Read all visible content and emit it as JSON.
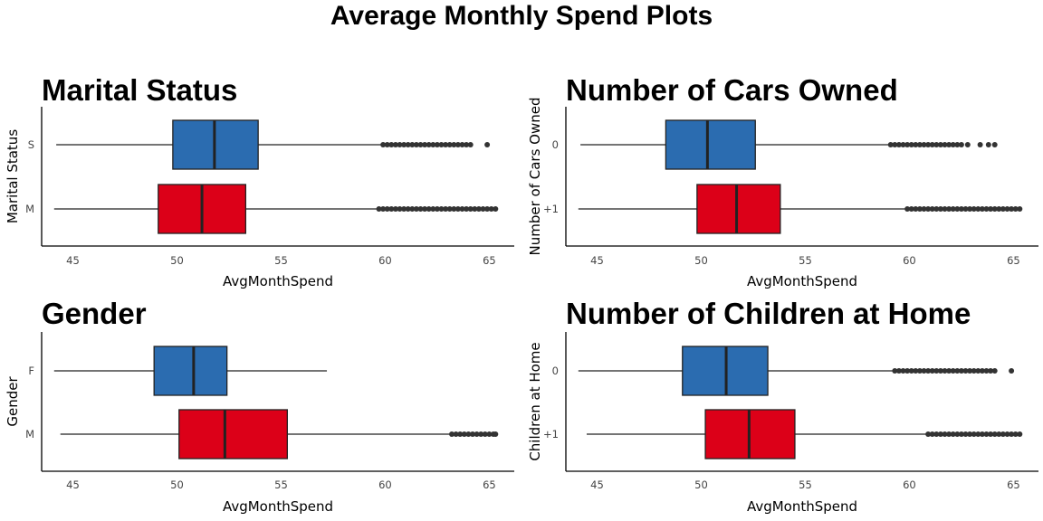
{
  "title": "Average Monthly Spend Plots",
  "colors": {
    "first": "#2B6CB0",
    "second": "#DC0018"
  },
  "chart_data": [
    {
      "type": "boxplot",
      "title": "Marital Status",
      "xlabel": "AvgMonthSpend",
      "ylabel": "Marital Status",
      "xlim": [
        43.5,
        66.2
      ],
      "xticks": [
        45,
        50,
        55,
        60,
        65
      ],
      "categories": [
        {
          "label": "S",
          "min": 44.2,
          "q1": 49.8,
          "median": 51.8,
          "q3": 53.9,
          "max": 59.8,
          "outliers": [
            59.9,
            60.1,
            60.3,
            60.5,
            60.7,
            60.9,
            61.1,
            61.3,
            61.5,
            61.7,
            61.9,
            62.1,
            62.3,
            62.5,
            62.7,
            62.9,
            63.1,
            63.3,
            63.5,
            63.7,
            63.9,
            64.1,
            64.9
          ]
        },
        {
          "label": "M",
          "min": 44.1,
          "q1": 49.1,
          "median": 51.2,
          "q3": 53.3,
          "max": 59.6,
          "outliers": [
            59.7,
            59.9,
            60.1,
            60.3,
            60.5,
            60.7,
            60.9,
            61.1,
            61.3,
            61.5,
            61.7,
            61.9,
            62.1,
            62.3,
            62.5,
            62.7,
            62.9,
            63.1,
            63.3,
            63.5,
            63.7,
            63.9,
            64.1,
            64.3,
            64.5,
            64.7,
            64.9,
            65.1,
            65.3
          ]
        }
      ]
    },
    {
      "type": "boxplot",
      "title": "Number of Cars Owned",
      "xlabel": "AvgMonthSpend",
      "ylabel": "Number of Cars Owned",
      "xlim": [
        43.5,
        66.2
      ],
      "xticks": [
        45,
        50,
        55,
        60,
        65
      ],
      "categories": [
        {
          "label": "0",
          "min": 44.2,
          "q1": 48.3,
          "median": 50.3,
          "q3": 52.6,
          "max": 59.0,
          "outliers": [
            59.1,
            59.3,
            59.5,
            59.7,
            59.9,
            60.1,
            60.3,
            60.5,
            60.7,
            60.9,
            61.1,
            61.3,
            61.5,
            61.7,
            61.9,
            62.1,
            62.3,
            62.5,
            62.8,
            63.4,
            63.8,
            64.1
          ]
        },
        {
          "label": "+1",
          "min": 44.1,
          "q1": 49.8,
          "median": 51.7,
          "q3": 53.8,
          "max": 59.8,
          "outliers": [
            59.9,
            60.1,
            60.3,
            60.5,
            60.7,
            60.9,
            61.1,
            61.3,
            61.5,
            61.7,
            61.9,
            62.1,
            62.3,
            62.5,
            62.7,
            62.9,
            63.1,
            63.3,
            63.5,
            63.7,
            63.9,
            64.1,
            64.3,
            64.5,
            64.7,
            64.9,
            65.1,
            65.3
          ]
        }
      ]
    },
    {
      "type": "boxplot",
      "title": "Gender",
      "xlabel": "AvgMonthSpend",
      "ylabel": "Gender",
      "xlim": [
        43.5,
        66.2
      ],
      "xticks": [
        45,
        50,
        55,
        60,
        65
      ],
      "categories": [
        {
          "label": "F",
          "min": 44.1,
          "q1": 48.9,
          "median": 50.8,
          "q3": 52.4,
          "max": 57.2,
          "outliers": []
        },
        {
          "label": "M",
          "min": 44.4,
          "q1": 50.1,
          "median": 52.3,
          "q3": 55.3,
          "max": 63.1,
          "outliers": [
            63.2,
            63.4,
            63.6,
            63.8,
            64.0,
            64.2,
            64.4,
            64.6,
            64.8,
            65.0,
            65.2,
            65.3
          ]
        }
      ]
    },
    {
      "type": "boxplot",
      "title": "Number of Children at Home",
      "xlabel": "AvgMonthSpend",
      "ylabel": "Children at Home",
      "xlim": [
        43.5,
        66.2
      ],
      "xticks": [
        45,
        50,
        55,
        60,
        65
      ],
      "categories": [
        {
          "label": "0",
          "min": 44.1,
          "q1": 49.1,
          "median": 51.2,
          "q3": 53.2,
          "max": 59.2,
          "outliers": [
            59.3,
            59.5,
            59.7,
            59.9,
            60.1,
            60.3,
            60.5,
            60.7,
            60.9,
            61.1,
            61.3,
            61.5,
            61.7,
            61.9,
            62.1,
            62.3,
            62.5,
            62.7,
            62.9,
            63.1,
            63.3,
            63.5,
            63.7,
            63.9,
            64.1,
            64.9
          ]
        },
        {
          "label": "+1",
          "min": 44.5,
          "q1": 50.2,
          "median": 52.3,
          "q3": 54.5,
          "max": 60.8,
          "outliers": [
            60.9,
            61.1,
            61.3,
            61.5,
            61.7,
            61.9,
            62.1,
            62.3,
            62.5,
            62.7,
            62.9,
            63.1,
            63.3,
            63.5,
            63.7,
            63.9,
            64.1,
            64.3,
            64.5,
            64.7,
            64.9,
            65.1,
            65.3
          ]
        }
      ]
    }
  ]
}
